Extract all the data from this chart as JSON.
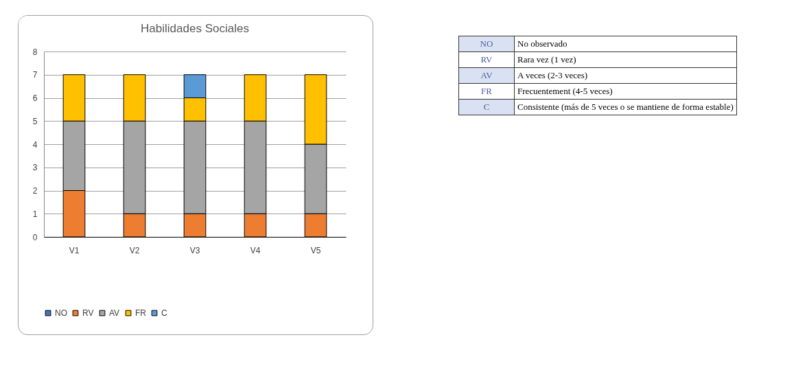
{
  "chart_data": [
    {
      "type": "bar",
      "title": "Habilidades Sociales",
      "categories": [
        "V1",
        "V2",
        "V3",
        "V4",
        "V5"
      ],
      "stacked": true,
      "ylim": [
        0,
        8
      ],
      "yticks": [
        0,
        1,
        2,
        3,
        4,
        5,
        6,
        7,
        8
      ],
      "grid": "y",
      "legend": "bottom",
      "series": [
        {
          "name": "NO",
          "color": "#4472c4",
          "values": [
            0,
            0,
            0,
            0,
            0
          ]
        },
        {
          "name": "RV",
          "color": "#ed7d31",
          "values": [
            2,
            1,
            1,
            1,
            1
          ]
        },
        {
          "name": "AV",
          "color": "#a5a5a5",
          "values": [
            3,
            4,
            4,
            4,
            3
          ]
        },
        {
          "name": "FR",
          "color": "#ffc000",
          "values": [
            2,
            2,
            1,
            2,
            3
          ]
        },
        {
          "name": "C",
          "color": "#5b9bd5",
          "values": [
            0,
            0,
            1,
            0,
            0
          ]
        }
      ]
    },
    {
      "type": "other",
      "annotations": [
        "NO",
        "No observado",
        "RV",
        "Rara vez (1 vez)",
        "AV",
        "A veces (2-3 veces)",
        "FR",
        "Frecuentement (4-5 veces)",
        "C",
        "Consistente (más de 5 veces o se mantiene de forma estable)"
      ]
    }
  ]
}
